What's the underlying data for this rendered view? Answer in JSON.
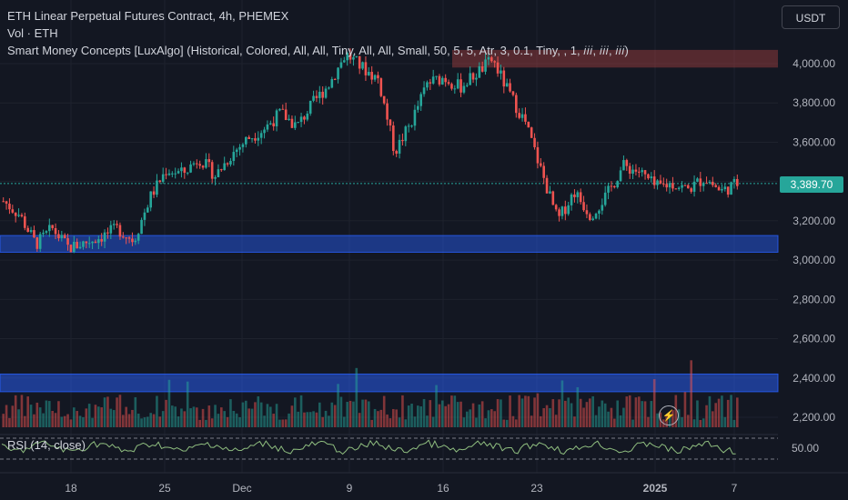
{
  "header": {
    "title": "ETH Linear Perpetual Futures Contract, 4h, PHEMEX",
    "volume": "Vol · ETH",
    "indicator": "Smart Money Concepts [LuxAlgo] (Historical, Colored, All, All, Tiny, All, All, Small, 50, 5, 5, Atr, 3, 0.1, Tiny, , 1, 𝑖𝑖𝑖, 𝑖𝑖𝑖, 𝑖𝑖𝑖)"
  },
  "currency": "USDT",
  "current_price": "3,389.70",
  "rsi_label": "RSI (14, close)",
  "price_axis": [
    "4,000.00",
    "3,800.00",
    "3,600.00",
    "3,400.00",
    "3,200.00",
    "3,000.00",
    "2,800.00",
    "2,600.00",
    "2,400.00",
    "2,200.00"
  ],
  "rsi_axis": "50.00",
  "time_axis": [
    "18",
    "25",
    "Dec",
    "9",
    "16",
    "23",
    "2025",
    "7"
  ],
  "chart_data": {
    "type": "candlestick",
    "price_values": [
      4000,
      3800,
      3600,
      3400,
      3200,
      3000,
      2800,
      2600,
      2400,
      2200
    ],
    "close_path": [
      [
        0,
        3300
      ],
      [
        0.02,
        3230
      ],
      [
        0.04,
        3080
      ],
      [
        0.06,
        3160
      ],
      [
        0.08,
        3060
      ],
      [
        0.1,
        3090
      ],
      [
        0.12,
        3120
      ],
      [
        0.14,
        3160
      ],
      [
        0.16,
        3100
      ],
      [
        0.18,
        3320
      ],
      [
        0.2,
        3460
      ],
      [
        0.22,
        3440
      ],
      [
        0.24,
        3520
      ],
      [
        0.26,
        3430
      ],
      [
        0.28,
        3540
      ],
      [
        0.3,
        3620
      ],
      [
        0.32,
        3670
      ],
      [
        0.34,
        3750
      ],
      [
        0.36,
        3680
      ],
      [
        0.38,
        3800
      ],
      [
        0.4,
        3900
      ],
      [
        0.42,
        4050
      ],
      [
        0.44,
        3980
      ],
      [
        0.46,
        3920
      ],
      [
        0.48,
        3550
      ],
      [
        0.5,
        3700
      ],
      [
        0.52,
        3900
      ],
      [
        0.54,
        3930
      ],
      [
        0.56,
        3880
      ],
      [
        0.58,
        3950
      ],
      [
        0.6,
        4020
      ],
      [
        0.62,
        3850
      ],
      [
        0.64,
        3700
      ],
      [
        0.66,
        3450
      ],
      [
        0.68,
        3200
      ],
      [
        0.7,
        3350
      ],
      [
        0.72,
        3230
      ],
      [
        0.74,
        3330
      ],
      [
        0.76,
        3480
      ],
      [
        0.78,
        3450
      ],
      [
        0.8,
        3370
      ],
      [
        0.82,
        3390
      ],
      [
        0.84,
        3360
      ],
      [
        0.86,
        3420
      ],
      [
        0.88,
        3350
      ],
      [
        0.9,
        3390
      ]
    ],
    "zones": [
      {
        "kind": "bullish",
        "low": 3040,
        "high": 3125
      },
      {
        "kind": "bearish",
        "low": 3980,
        "high": 4070
      },
      {
        "kind": "volume-band",
        "low": 2330,
        "high": 2420
      }
    ],
    "rsi_value": 50,
    "colors": {
      "up": "#26a69a",
      "down": "#ef5350",
      "zone_bull": "#2962ff",
      "zone_bear": "#ef5350",
      "rsi": "#90bf80"
    }
  }
}
